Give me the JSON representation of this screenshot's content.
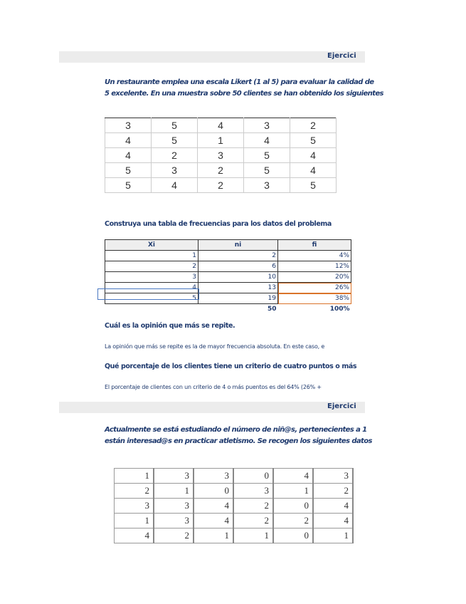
{
  "section1": {
    "header": "Ejercici",
    "intro": [
      "Un restaurante emplea una escala Likert (1 al 5) para evaluar la calidad de",
      "5 excelente. En una muestra sobre 50 clientes se han obtenido los siguientes"
    ],
    "data_table": [
      [
        "3",
        "5",
        "4",
        "3",
        "2"
      ],
      [
        "4",
        "5",
        "1",
        "4",
        "5"
      ],
      [
        "4",
        "2",
        "3",
        "5",
        "4"
      ],
      [
        "5",
        "3",
        "2",
        "5",
        "4"
      ],
      [
        "5",
        "4",
        "2",
        "3",
        "5"
      ]
    ],
    "q1": "Construya una tabla de frecuencias para los datos del problema",
    "freq": {
      "headers": [
        "Xi",
        "ni",
        "fi"
      ],
      "rows": [
        [
          "1",
          "2",
          "4%"
        ],
        [
          "2",
          "6",
          "12%"
        ],
        [
          "3",
          "10",
          "20%"
        ],
        [
          "4",
          "13",
          "26%"
        ],
        [
          "5",
          "19",
          "38%"
        ]
      ],
      "total_ni": "50",
      "total_fi": "100%"
    },
    "q2": "Cuál es la opinión que más se repite.",
    "a2": "La opinión que más se repite es la de mayor frecuencia absoluta. En este caso, e",
    "q3": "Qué porcentaje de los clientes tiene un criterio de cuatro puntos o más",
    "a3": "El porcentaje de clientes con un criterio de 4 o más puentos es del 64% (26% +"
  },
  "section2": {
    "header": "Ejercici",
    "intro": [
      "Actualmente se está estudiando el número de niñ@s, pertenecientes a 1",
      "están interesad@s en practicar atletismo. Se recogen los siguientes datos"
    ],
    "data_table": [
      [
        "1",
        "3",
        "3",
        "0",
        "4",
        "3"
      ],
      [
        "2",
        "1",
        "0",
        "3",
        "1",
        "2"
      ],
      [
        "3",
        "3",
        "4",
        "2",
        "0",
        "4"
      ],
      [
        "1",
        "3",
        "4",
        "2",
        "2",
        "4"
      ],
      [
        "4",
        "2",
        "1",
        "1",
        "0",
        "1"
      ]
    ]
  }
}
